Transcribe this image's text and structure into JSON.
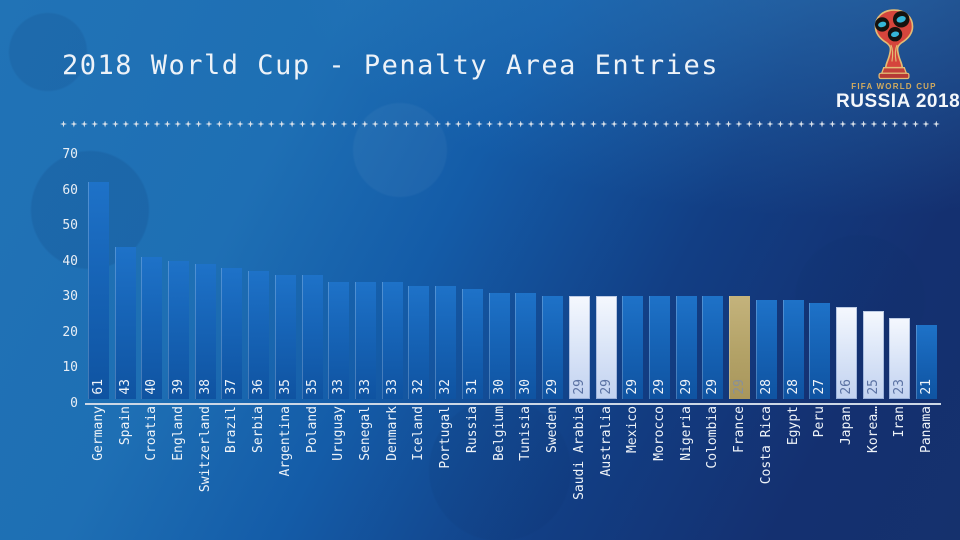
{
  "title": "2018 World Cup - Penalty Area Entries",
  "divider": {
    "glyph": "four-pointed-star",
    "count": 85,
    "color": "#dde3ea"
  },
  "logo": {
    "small_text": "FIFA WORLD CUP",
    "large_text": "RUSSIA 2018",
    "trophy_colors": {
      "body_red": "#d5453c",
      "trim_gold": "#e3bc75",
      "panel_black": "#15120f",
      "panel_teal": "#35b6d9"
    }
  },
  "chart_data": {
    "type": "bar",
    "title": "2018 World Cup - Penalty Area Entries",
    "xlabel": "",
    "ylabel": "",
    "ylim": [
      0,
      70
    ],
    "y_ticks": [
      0,
      10,
      20,
      30,
      40,
      50,
      60,
      70
    ],
    "grid": false,
    "legend": false,
    "categories": [
      "Germany",
      "Spain",
      "Croatia",
      "England",
      "Switzerland",
      "Brazil",
      "Serbia",
      "Argentina",
      "Poland",
      "Uruguay",
      "Senegal",
      "Denmark",
      "Iceland",
      "Portugal",
      "Russia",
      "Belgium",
      "Tunisia",
      "Sweden",
      "Saudi Arabia",
      "Australia",
      "Mexico",
      "Morocco",
      "Nigeria",
      "Colombia",
      "France",
      "Costa Rica",
      "Egypt",
      "Peru",
      "Japan",
      "Korea…",
      "Iran",
      "Panama"
    ],
    "values": [
      61,
      43,
      40,
      39,
      38,
      37,
      36,
      35,
      35,
      33,
      33,
      33,
      32,
      32,
      31,
      30,
      30,
      29,
      29,
      29,
      29,
      29,
      29,
      29,
      29,
      28,
      28,
      27,
      26,
      25,
      23,
      21
    ],
    "bar_styles": [
      "blue",
      "blue",
      "blue",
      "blue",
      "blue",
      "blue",
      "blue",
      "blue",
      "blue",
      "blue",
      "blue",
      "blue",
      "blue",
      "blue",
      "blue",
      "blue",
      "blue",
      "blue",
      "light",
      "light",
      "blue",
      "blue",
      "blue",
      "blue",
      "gold",
      "blue",
      "blue",
      "blue",
      "light",
      "light",
      "light",
      "blue"
    ],
    "colors": {
      "bar_blue_top": "#1e72c8",
      "bar_blue_bottom": "#0f53a1",
      "bar_light_top": "#f5f8fe",
      "bar_light_bottom": "#c2d2f0",
      "bar_gold_top": "#c4b37c",
      "bar_gold_bottom": "#a8965c",
      "value_text_on_blue": "#eef3f8",
      "value_text_on_light": "#5b72a3",
      "value_text_on_gold": "#87909a",
      "axis_line": "#ccd7e5",
      "tick_text": "#e8eef5",
      "background_top": "#2173b6",
      "background_bottom": "#15316d"
    }
  }
}
